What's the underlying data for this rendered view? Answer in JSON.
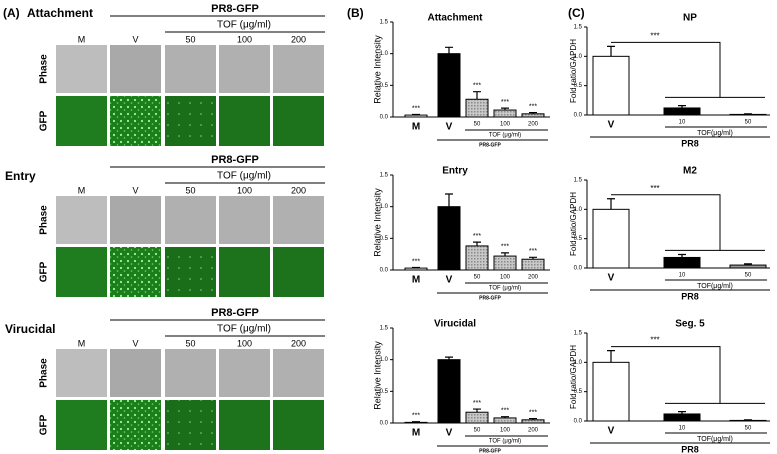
{
  "panel_a": {
    "label": "(A)",
    "blocks": [
      {
        "title": "Attachment",
        "group": "PR8-GFP",
        "subgroup": "TOF (μg/ml)",
        "columns": [
          "M",
          "V",
          "50",
          "100",
          "200"
        ],
        "rows": [
          "Phase",
          "GFP"
        ]
      },
      {
        "title": "Entry",
        "group": "PR8-GFP",
        "subgroup": "TOF (μg/ml)",
        "columns": [
          "M",
          "V",
          "50",
          "100",
          "200"
        ],
        "rows": [
          "Phase",
          "GFP"
        ]
      },
      {
        "title": "Virucidal",
        "group": "PR8-GFP",
        "subgroup": "TOF (μg/ml)",
        "columns": [
          "M",
          "V",
          "50",
          "100",
          "200"
        ],
        "rows": [
          "Phase",
          "GFP"
        ]
      }
    ]
  },
  "panel_labels": {
    "b": "(B)",
    "c": "(C)"
  },
  "chart_data": [
    {
      "type": "bar",
      "title": "Attachment",
      "y_label": "Relative Intensity",
      "categories": [
        "M",
        "V",
        "50",
        "100",
        "200"
      ],
      "values": [
        0.03,
        1.0,
        0.28,
        0.11,
        0.05
      ],
      "errors": [
        0.01,
        0.1,
        0.12,
        0.03,
        0.02
      ],
      "annotations": [
        "***",
        null,
        "***",
        "***",
        "***"
      ],
      "colors": [
        "#ffffff",
        "#000000",
        "#b3b3b3",
        "#b3b3b3",
        "#b3b3b3"
      ],
      "group_labels": [
        "TOF (μg/ml)",
        "PR8-GFP"
      ],
      "ylim": [
        0,
        1.5
      ],
      "yticks": [
        {
          "value": 0,
          "label": "0.0"
        },
        0.5,
        {
          "value": 1,
          "label": "1.0"
        },
        1.5
      ]
    },
    {
      "type": "bar",
      "title": "Entry",
      "y_label": "Relative Intensity",
      "categories": [
        "M",
        "V",
        "50",
        "100",
        "200"
      ],
      "values": [
        0.03,
        1.0,
        0.38,
        0.22,
        0.17
      ],
      "errors": [
        0.01,
        0.2,
        0.06,
        0.05,
        0.03
      ],
      "annotations": [
        "***",
        null,
        "***",
        "***",
        "***"
      ],
      "colors": [
        "#ffffff",
        "#000000",
        "#b3b3b3",
        "#b3b3b3",
        "#b3b3b3"
      ],
      "group_labels": [
        "TOF (μg/ml)",
        "PR8-GFP"
      ],
      "ylim": [
        0,
        1.5
      ],
      "yticks": [
        {
          "value": 0,
          "label": "0.0"
        },
        0.5,
        {
          "value": 1,
          "label": "1.0"
        },
        1.5
      ]
    },
    {
      "type": "bar",
      "title": "Virucidal",
      "y_label": "Relative Intensity",
      "categories": [
        "M",
        "V",
        "50",
        "100",
        "200"
      ],
      "values": [
        0.01,
        1.0,
        0.17,
        0.08,
        0.05
      ],
      "errors": [
        0.01,
        0.04,
        0.05,
        0.02,
        0.02
      ],
      "annotations": [
        "***",
        null,
        "***",
        "***",
        "***"
      ],
      "colors": [
        "#ffffff",
        "#000000",
        "#b3b3b3",
        "#b3b3b3",
        "#b3b3b3"
      ],
      "group_labels": [
        "TOF (μg/ml)",
        "PR8-GFP"
      ],
      "ylim": [
        0,
        1.5
      ],
      "yticks": [
        {
          "value": 0,
          "label": "0.0"
        },
        0.5,
        {
          "value": 1,
          "label": "1.0"
        },
        1.5
      ]
    },
    {
      "type": "bar",
      "title": "NP",
      "y_label": "Fold ratio/GAPDH",
      "categories": [
        "V",
        "10",
        "50"
      ],
      "values": [
        1.0,
        0.12,
        0.01
      ],
      "errors": [
        0.17,
        0.04,
        0.01
      ],
      "colors": [
        "#ffffff",
        "#000000",
        "#999999"
      ],
      "significance": "***",
      "group_labels": [
        "TOF(μg/ml)",
        "PR8"
      ],
      "ylim": [
        0,
        1.5
      ],
      "yticks": [
        {
          "value": 0,
          "label": "0.0"
        },
        0.5,
        {
          "value": 1,
          "label": "1.0"
        },
        1.5
      ]
    },
    {
      "type": "bar",
      "title": "M2",
      "y_label": "Fold ratio/GAPDH",
      "categories": [
        "V",
        "10",
        "50"
      ],
      "values": [
        1.0,
        0.18,
        0.05
      ],
      "errors": [
        0.18,
        0.05,
        0.02
      ],
      "colors": [
        "#ffffff",
        "#000000",
        "#999999"
      ],
      "significance": "***",
      "group_labels": [
        "TOF(μg/ml)",
        "PR8"
      ],
      "ylim": [
        0,
        1.5
      ],
      "yticks": [
        {
          "value": 0,
          "label": "0.0"
        },
        0.5,
        {
          "value": 1,
          "label": "1.0"
        },
        1.5
      ]
    },
    {
      "type": "bar",
      "title": "Seg. 5",
      "y_label": "Fold ratio/GAPDH",
      "categories": [
        "V",
        "10",
        "50"
      ],
      "values": [
        1.0,
        0.12,
        0.01
      ],
      "errors": [
        0.2,
        0.04,
        0.01
      ],
      "colors": [
        "#ffffff",
        "#000000",
        "#999999"
      ],
      "significance": "***",
      "group_labels": [
        "TOF(μg/ml)",
        "PR8"
      ],
      "ylim": [
        0,
        1.5
      ],
      "yticks": [
        {
          "value": 0,
          "label": "0.0"
        },
        0.5,
        {
          "value": 1,
          "label": "1.0"
        },
        1.5
      ]
    }
  ]
}
